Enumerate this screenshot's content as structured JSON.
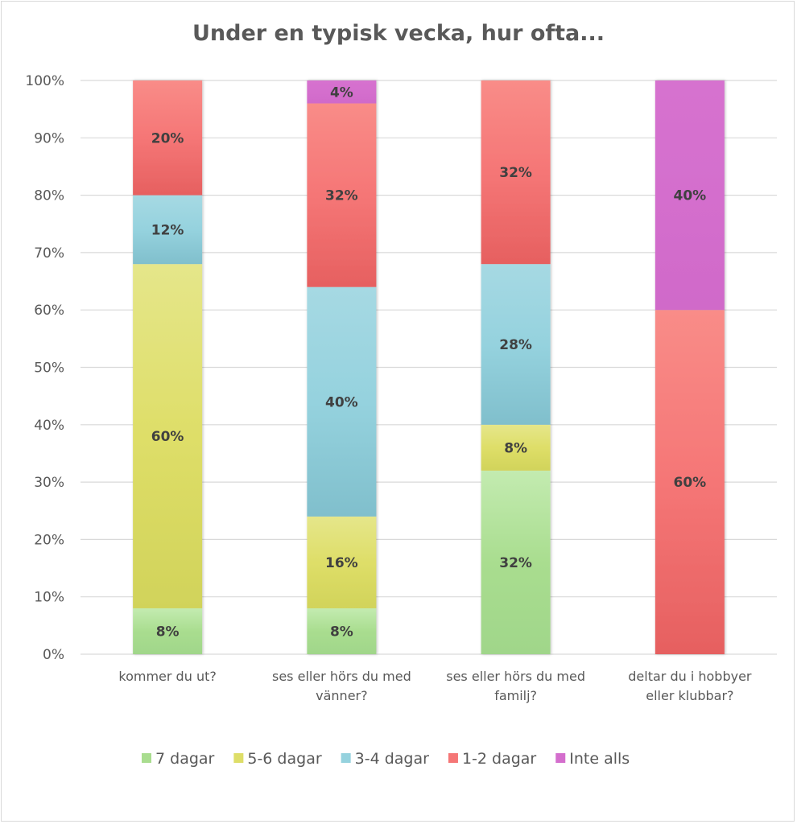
{
  "chart_data": {
    "type": "bar",
    "stacked": true,
    "title": "Under en typisk vecka, hur ofta...",
    "xlabel": "",
    "ylabel": "",
    "ylim": [
      0,
      100
    ],
    "yticks": [
      "0%",
      "10%",
      "20%",
      "30%",
      "40%",
      "50%",
      "60%",
      "70%",
      "80%",
      "90%",
      "100%"
    ],
    "grid": true,
    "legend_position": "bottom",
    "categories": [
      [
        "kommer du ut?"
      ],
      [
        "ses eller hörs du med",
        "vänner?"
      ],
      [
        "ses eller hörs du med",
        "familj?"
      ],
      [
        "deltar du i hobbyer",
        "eller klubbar?"
      ]
    ],
    "series": [
      {
        "name": "7 dagar",
        "color": "#a9dd8f",
        "light": "#c3ebb0",
        "dark": "#a0d68a",
        "values": [
          8,
          8,
          32,
          0
        ]
      },
      {
        "name": "5-6 dagar",
        "color": "#dede68",
        "light": "#e5e68a",
        "dark": "#d1d35a",
        "values": [
          60,
          16,
          8,
          0
        ]
      },
      {
        "name": "3-4 dagar",
        "color": "#95d2de",
        "light": "#a6d9e3",
        "dark": "#80bfcc",
        "values": [
          12,
          40,
          28,
          0
        ]
      },
      {
        "name": "1-2 dagar",
        "color": "#f57676",
        "light": "#f98c88",
        "dark": "#e66060",
        "values": [
          20,
          32,
          32,
          60
        ]
      },
      {
        "name": "Inte alls",
        "color": "#d46ecd",
        "light": "#d672cf",
        "dark": "#d06ac9",
        "values": [
          0,
          4,
          0,
          40
        ]
      }
    ]
  }
}
